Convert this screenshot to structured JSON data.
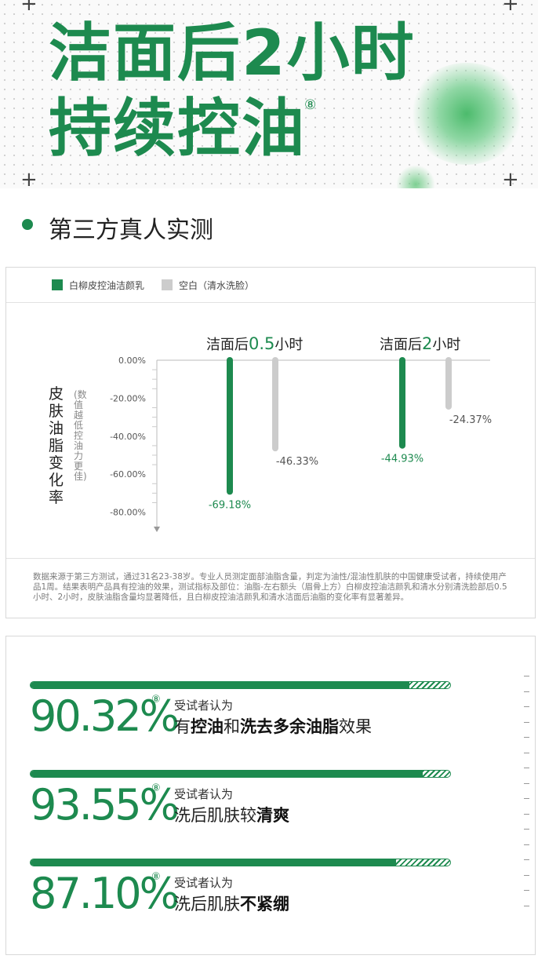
{
  "hero": {
    "title_line1": "洁面后2小时",
    "title_line2": "持续控油",
    "title_reg": "⑧",
    "subtitle": "第三方真人实测"
  },
  "chart_data": {
    "type": "bar",
    "legend": [
      {
        "name": "白柳皮控油洁颜乳",
        "color": "#1d8a4f"
      },
      {
        "name": "空白（清水洗脸）",
        "color": "#cccccc"
      }
    ],
    "groups": [
      {
        "title_prefix": "洁面后",
        "title_num": "0.5",
        "title_suffix": "小时"
      },
      {
        "title_prefix": "洁面后",
        "title_num": "2",
        "title_suffix": "小时"
      }
    ],
    "series": [
      {
        "name": "白柳皮控油洁颜乳",
        "values": [
          -69.18,
          -44.93
        ],
        "labels": [
          "-69.18%",
          "-44.93%"
        ]
      },
      {
        "name": "空白（清水洗脸）",
        "values": [
          -46.33,
          -24.37
        ],
        "labels": [
          "-46.33%",
          "-24.37%"
        ]
      }
    ],
    "yticks": [
      "0.00%",
      "-20.00%",
      "-40.00%",
      "-60.00%",
      "-80.00%"
    ],
    "ylim": [
      -90,
      0
    ],
    "ylabel": "皮肤油脂变化率",
    "ylabel_note": "(数值越低 控油力更佳)",
    "note": "数据来源于第三方测试，通过31名23-38岁。专业人员测定面部油脂含量，判定为油性/混油性肌肤的中国健康受试者，持续使用产品1周。结果表明产品具有控油的效果，测试指标及部位：油脂-左右额头（眉骨上方）白柳皮控油洁颜乳和清水分别清洗脸部后0.5小时、2小时，皮肤油脂含量均显著降低，且白柳皮控油洁颜乳和清水洁面后油脂的变化率有显著差异。"
  },
  "stats": [
    {
      "value": "90.32%",
      "percent": 90.32,
      "reg": "⑧",
      "kicker": "受试者认为",
      "desc": [
        {
          "t": "有",
          "b": false
        },
        {
          "t": "控油",
          "b": true
        },
        {
          "t": "和",
          "b": false
        },
        {
          "t": "洗去多余油脂",
          "b": true
        },
        {
          "t": "效果",
          "b": false
        }
      ]
    },
    {
      "value": "93.55%",
      "percent": 93.55,
      "reg": "⑧",
      "kicker": "受试者认为",
      "desc": [
        {
          "t": "洗后肌肤较",
          "b": false
        },
        {
          "t": "清爽",
          "b": true
        }
      ]
    },
    {
      "value": "87.10%",
      "percent": 87.1,
      "reg": "⑧",
      "kicker": "受试者认为",
      "desc": [
        {
          "t": "洗后肌肤",
          "b": false
        },
        {
          "t": "不紧绷",
          "b": true
        }
      ]
    }
  ],
  "colors": {
    "brand": "#1d8a4f",
    "blank": "#cccccc"
  }
}
